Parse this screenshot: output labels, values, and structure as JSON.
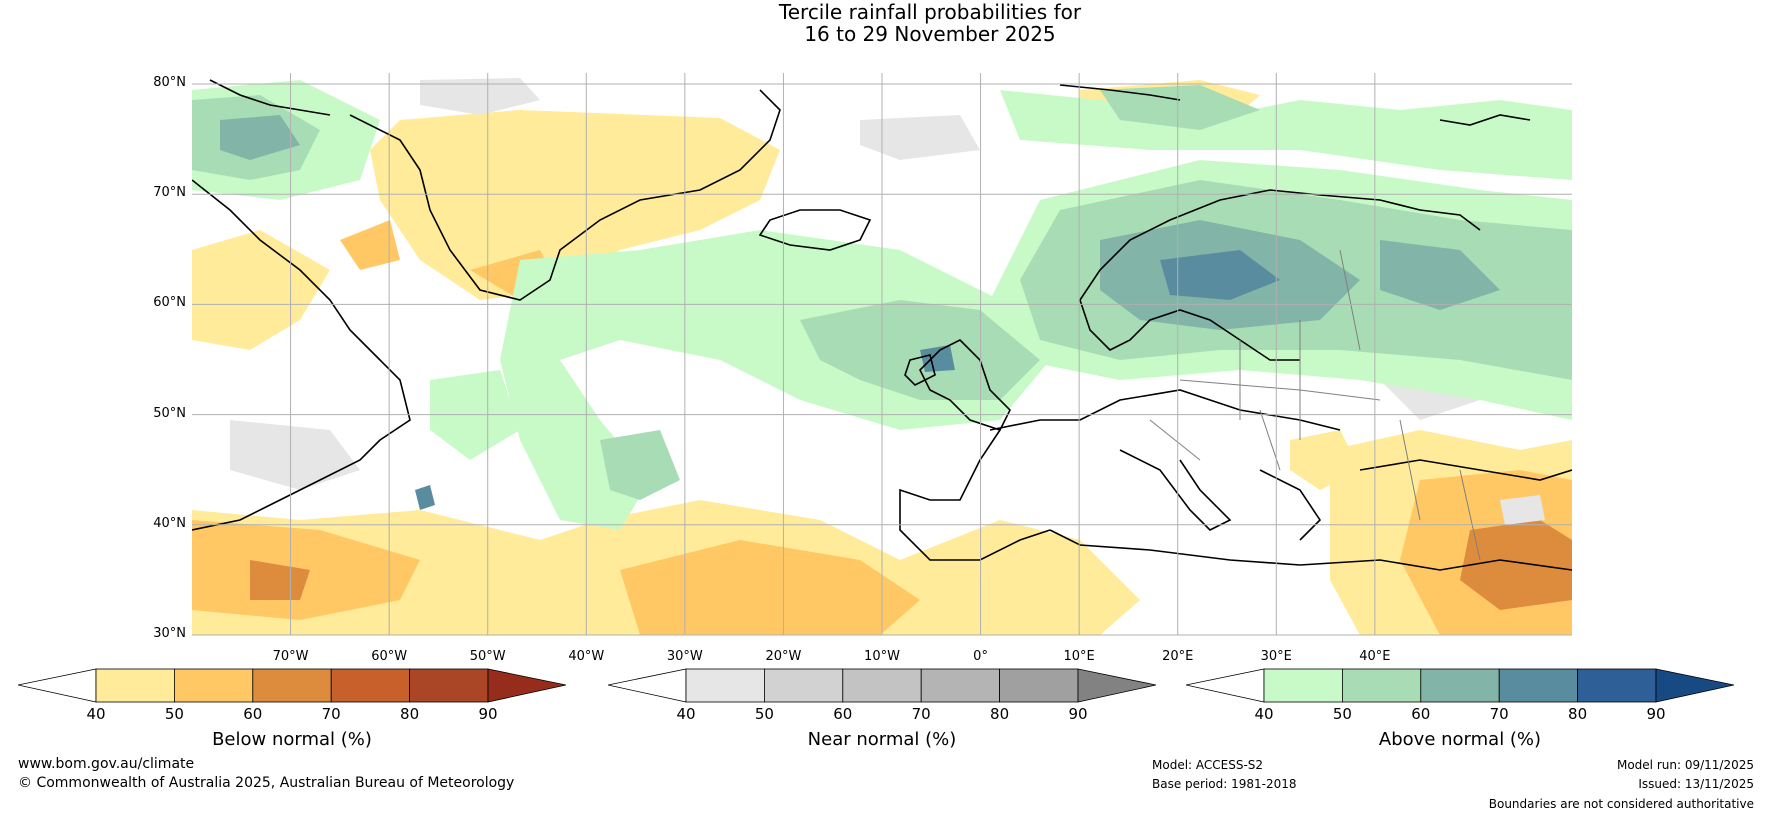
{
  "title": {
    "line1": "Tercile rainfall probabilities for",
    "line2": "16 to 29 November 2025"
  },
  "map": {
    "extent": {
      "lon_min": -80,
      "lon_max": 60,
      "lat_min": 30,
      "lat_max": 81
    },
    "lat_ticks": [
      {
        "value": 80,
        "label": "80°N"
      },
      {
        "value": 70,
        "label": "70°N"
      },
      {
        "value": 60,
        "label": "60°N"
      },
      {
        "value": 50,
        "label": "50°N"
      },
      {
        "value": 40,
        "label": "40°N"
      },
      {
        "value": 30,
        "label": "30°N"
      }
    ],
    "lon_ticks": [
      {
        "value": -70,
        "label": "70°W"
      },
      {
        "value": -60,
        "label": "60°W"
      },
      {
        "value": -50,
        "label": "50°W"
      },
      {
        "value": -40,
        "label": "40°W"
      },
      {
        "value": -30,
        "label": "30°W"
      },
      {
        "value": -20,
        "label": "20°W"
      },
      {
        "value": -10,
        "label": "10°W"
      },
      {
        "value": 0,
        "label": "0°"
      },
      {
        "value": 10,
        "label": "10°E"
      },
      {
        "value": 20,
        "label": "20°E"
      },
      {
        "value": 30,
        "label": "30°E"
      },
      {
        "value": 40,
        "label": "40°E"
      }
    ],
    "colors": {
      "land_outline": "#000000",
      "border": "#808080",
      "grid": "#b0b0b0"
    }
  },
  "colorbars": [
    {
      "title": "Below normal (%)",
      "ticks": [
        "40",
        "50",
        "60",
        "70",
        "80",
        "90"
      ],
      "colors": [
        "#ffffff",
        "#ffeb99",
        "#ffc864",
        "#dc8c3c",
        "#c8602c",
        "#aa4626",
        "#962d1c"
      ]
    },
    {
      "title": "Near normal (%)",
      "ticks": [
        "40",
        "50",
        "60",
        "70",
        "80",
        "90"
      ],
      "colors": [
        "#ffffff",
        "#e6e6e6",
        "#d2d2d2",
        "#c3c3c3",
        "#b4b4b4",
        "#a0a0a0",
        "#828282"
      ]
    },
    {
      "title": "Above normal (%)",
      "ticks": [
        "40",
        "50",
        "60",
        "70",
        "80",
        "90"
      ],
      "colors": [
        "#ffffff",
        "#c8fac8",
        "#a8dcb4",
        "#82b4a8",
        "#5a8ca0",
        "#2e5f96",
        "#174a82"
      ]
    }
  ],
  "footer": {
    "website": "www.bom.gov.au/climate",
    "copyright": "© Commonwealth of Australia 2025, Australian Bureau of Meteorology",
    "model": "Model: ACCESS-S2",
    "base_period": "Base period: 1981-2018",
    "model_run": "Model run: 09/11/2025",
    "issued": "Issued: 13/11/2025",
    "disclaimer": "Boundaries are not considered authoritative"
  }
}
